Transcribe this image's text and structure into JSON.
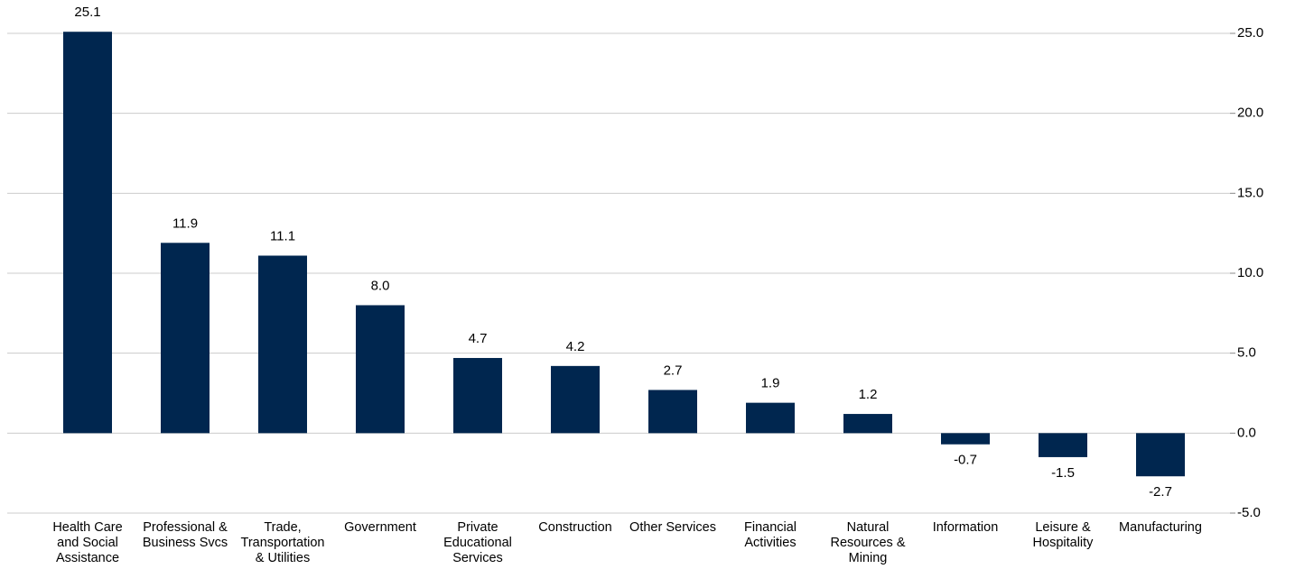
{
  "chart_data": {
    "type": "bar",
    "categories": [
      "Health Care\nand Social\nAssistance",
      "Professional &\nBusiness Svcs",
      "Trade,\nTransportation\n& Utilities",
      "Government",
      "Private\nEducational\nServices",
      "Construction",
      "Other Services",
      "Financial\nActivities",
      "Natural\nResources &\nMining",
      "Information",
      "Leisure &\nHospitality",
      "Manufacturing"
    ],
    "values": [
      25.1,
      11.9,
      11.1,
      8.0,
      4.7,
      4.2,
      2.7,
      1.9,
      1.2,
      -0.7,
      -1.5,
      -2.7
    ],
    "value_labels": [
      "25.1",
      "11.9",
      "11.1",
      "8.0",
      "4.7",
      "4.2",
      "2.7",
      "1.9",
      "1.2",
      "-0.7",
      "-1.5",
      "-2.7"
    ],
    "color": "#00264f",
    "ylim": [
      -5,
      25
    ],
    "yticks": [
      {
        "value": 25,
        "label": "25.0"
      },
      {
        "value": 20,
        "label": "20.0"
      },
      {
        "value": 15,
        "label": "15.0"
      },
      {
        "value": 10,
        "label": "10.0"
      },
      {
        "value": 5,
        "label": "5.0"
      },
      {
        "value": 0,
        "label": "0.0"
      },
      {
        "value": -5,
        "label": "-5.0"
      }
    ],
    "y_axis_side": "right",
    "grid": true
  }
}
